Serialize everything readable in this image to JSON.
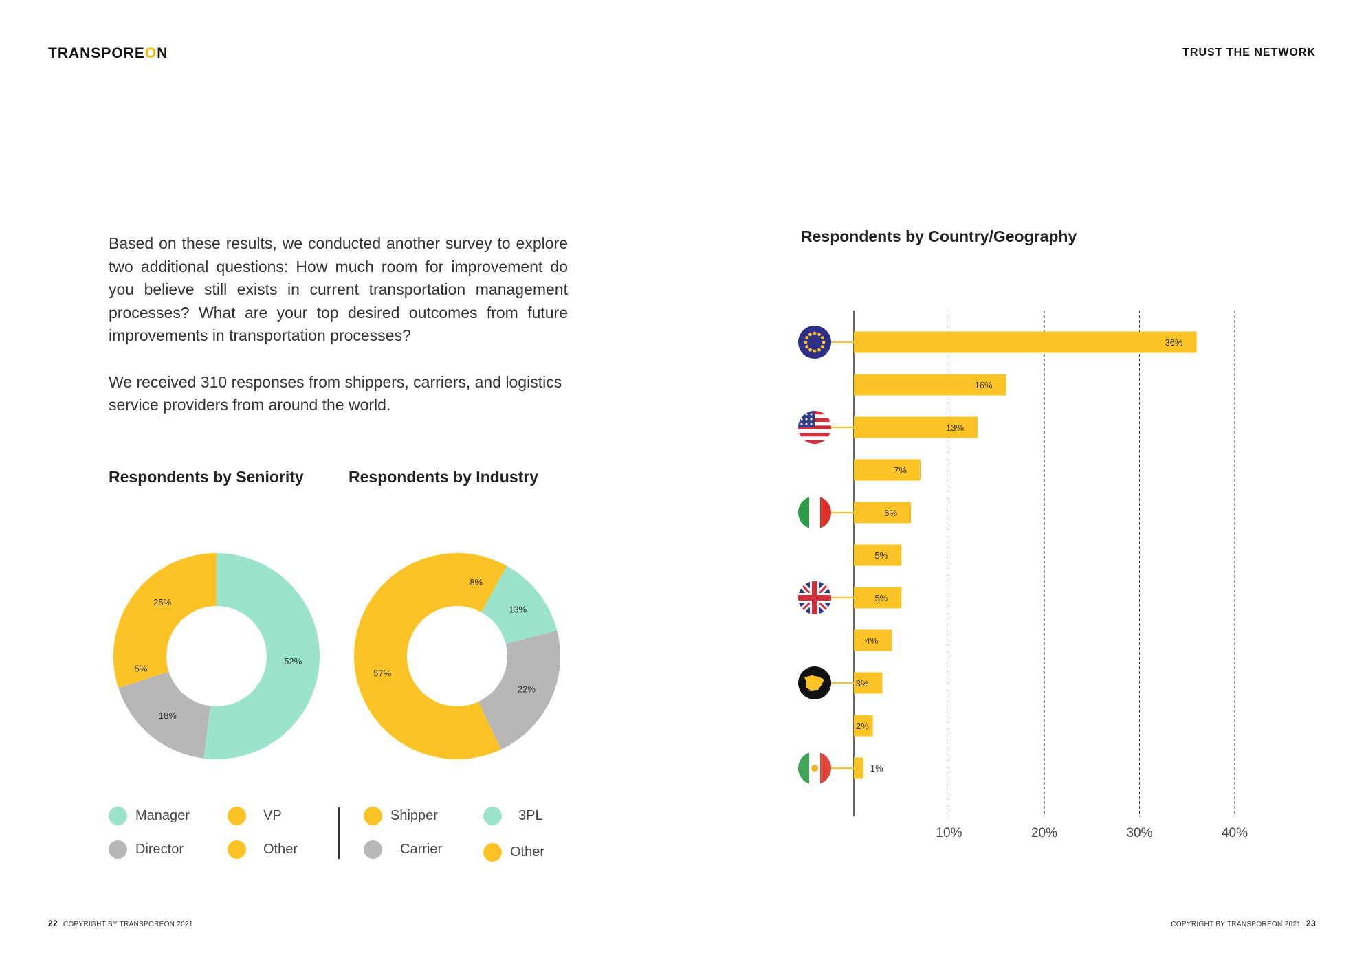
{
  "header": {
    "logo_pre": "TRANSPORE",
    "logo_o": "O",
    "logo_post": "N",
    "tagline": "TRUST THE NETWORK"
  },
  "intro": {
    "p1": "Based on these results, we conducted another survey to explore two additional questions: How much room for improvement do you believe still exists in current transportation management processes? What are your top desired outcomes from future improvements in transportation processes?",
    "p2": "We received 310 responses from shippers, carriers, and logistics service providers from around the world."
  },
  "colors": {
    "yellow": "#FBC325",
    "mint": "#9BE3CC",
    "gray": "#B7B7B7"
  },
  "chart_data": [
    {
      "type": "pie",
      "title": "Respondents by Seniority",
      "slices": [
        {
          "label": "Manager",
          "value": 52,
          "display": "52%",
          "color": "#9BE3CC"
        },
        {
          "label": "Director",
          "value": 18,
          "display": "18%",
          "color": "#B7B7B7"
        },
        {
          "label": "VP",
          "value": 5,
          "display": "5%",
          "color": "#FBC325"
        },
        {
          "label": "Other",
          "value": 25,
          "display": "25%",
          "color": "#FBC325"
        }
      ],
      "legend": [
        {
          "label": "Manager",
          "color": "#9BE3CC"
        },
        {
          "label": "VP",
          "color": "#FBC325"
        },
        {
          "label": "Director",
          "color": "#B7B7B7"
        },
        {
          "label": "Other",
          "color": "#FBC325"
        }
      ]
    },
    {
      "type": "pie",
      "title": "Respondents by Industry",
      "slices": [
        {
          "label": "Shipper",
          "value": 57,
          "display": "57%",
          "color": "#FBC325"
        },
        {
          "label": "Carrier",
          "value": 22,
          "display": "22%",
          "color": "#B7B7B7"
        },
        {
          "label": "3PL",
          "value": 13,
          "display": "13%",
          "color": "#9BE3CC"
        },
        {
          "label": "Other",
          "value": 8,
          "display": "8%",
          "color": "#FBC325"
        }
      ],
      "legend": [
        {
          "label": "Shipper",
          "color": "#FBC325"
        },
        {
          "label": "3PL",
          "color": "#9BE3CC"
        },
        {
          "label": "Carrier",
          "color": "#B7B7B7"
        },
        {
          "label": "Other",
          "color": "#FBC325"
        }
      ]
    },
    {
      "type": "bar",
      "orientation": "horizontal",
      "title": "Respondents by Country/Geography",
      "values": [
        36,
        16,
        13,
        7,
        6,
        5,
        5,
        4,
        3,
        2,
        1
      ],
      "labels": [
        "36%",
        "16%",
        "13%",
        "7%",
        "6%",
        "5%",
        "5%",
        "4%",
        "3%",
        "2%",
        "1%"
      ],
      "flags": [
        "eu-flag-icon",
        "",
        "usa-flag-icon",
        "",
        "italy-flag-icon",
        "",
        "uk-flag-icon",
        "",
        "spain-map-icon",
        "",
        "mexico-flag-icon"
      ],
      "xticks": [
        "10%",
        "20%",
        "30%",
        "40%"
      ],
      "xlim": [
        0,
        40
      ],
      "grid": true,
      "color": "#FBC325"
    }
  ],
  "footer": {
    "left_page": "22",
    "left_copyright": "COPYRIGHT BY TRANSPOREON 2021",
    "right_copyright": "COPYRIGHT BY TRANSPOREON 2021",
    "right_page": "23"
  }
}
